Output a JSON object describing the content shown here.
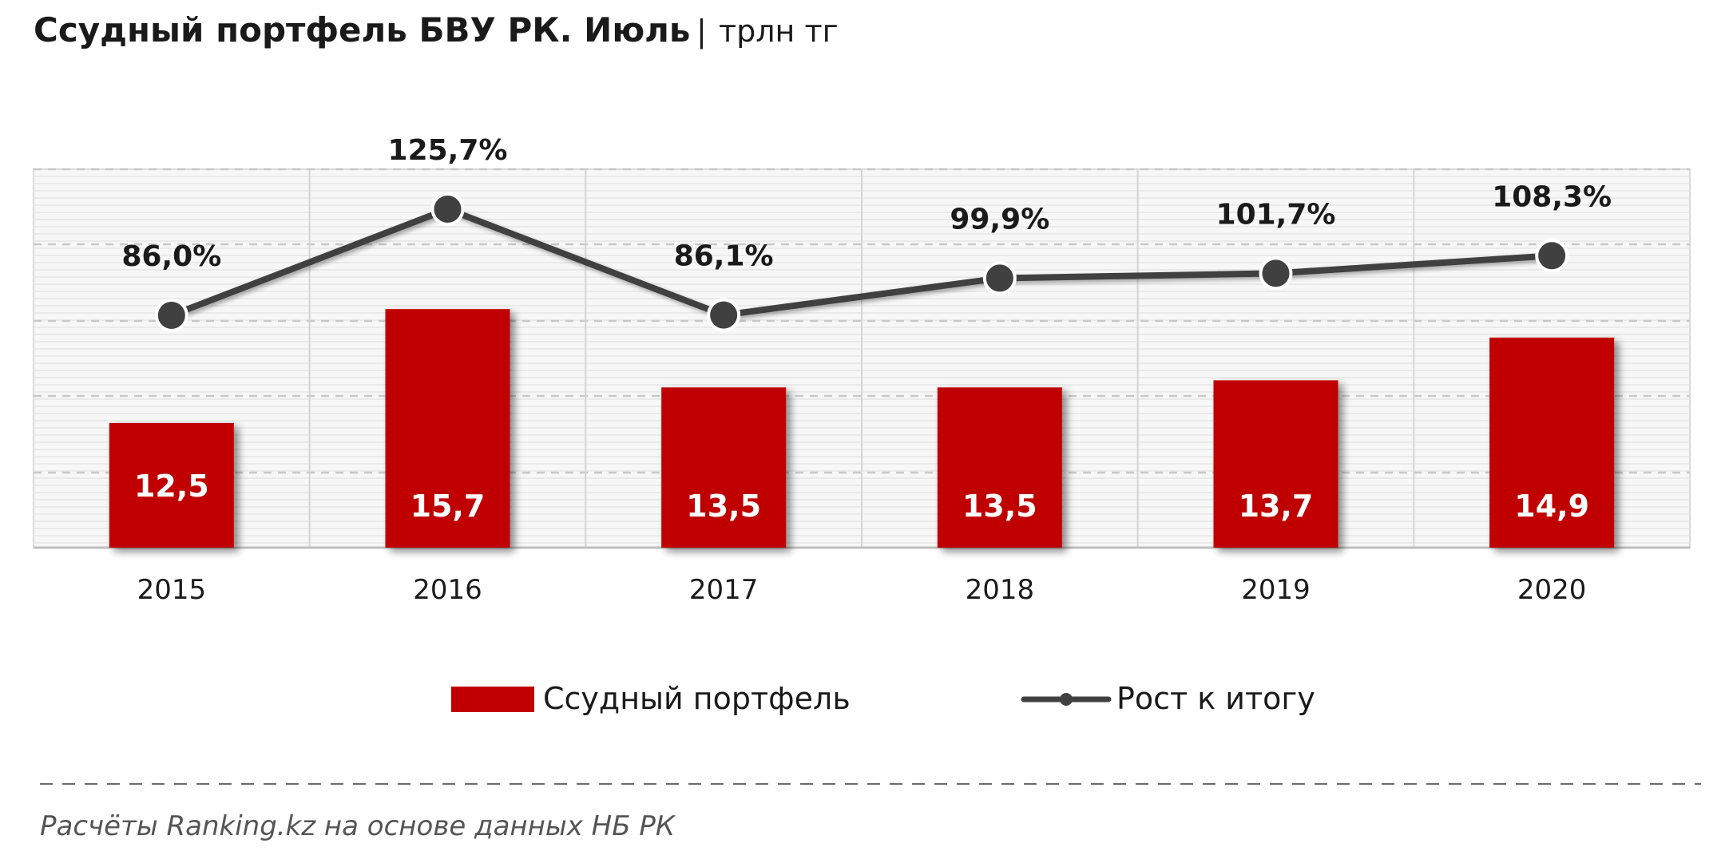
{
  "header": {
    "title": "Ссудный портфель БВУ РК. Июль",
    "separator": "|",
    "unit": "трлн тг"
  },
  "chart_data": {
    "type": "bar",
    "categories": [
      "2015",
      "2016",
      "2017",
      "2018",
      "2019",
      "2020"
    ],
    "series": [
      {
        "name": "Ссудный портфель",
        "kind": "bar",
        "color": "#c00000",
        "values": [
          12.5,
          15.7,
          13.5,
          13.5,
          13.7,
          14.9
        ],
        "labels": [
          "12,5",
          "15,7",
          "13,5",
          "13,5",
          "13,7",
          "14,9"
        ]
      },
      {
        "name": "Рост к итогу",
        "kind": "line",
        "color": "#404040",
        "values": [
          86.0,
          125.7,
          86.1,
          99.9,
          101.7,
          108.3
        ],
        "labels": [
          "86,0%",
          "125,7%",
          "86,1%",
          "99,9%",
          "101,7%",
          "108,3%"
        ]
      }
    ],
    "legend_position": "bottom",
    "grid": true
  },
  "footer": {
    "source": "Расчёты Ranking.kz на основе данных НБ РК"
  }
}
